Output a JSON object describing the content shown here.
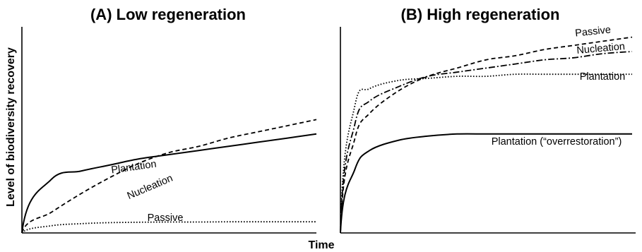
{
  "chart_data": {
    "type": "line",
    "ylabel": "Level of biodiversity recovery",
    "xlabel": "Time",
    "panels": [
      {
        "title": "(A) Low regeneration",
        "x": [
          0,
          0.1,
          0.2,
          0.3,
          0.4,
          0.5,
          0.6,
          0.7,
          0.8,
          0.9,
          1.0
        ],
        "ylim": [
          0,
          1
        ],
        "series": [
          {
            "name": "Plantation",
            "style": "solid",
            "values": [
              0.0,
              0.26,
              0.3,
              0.33,
              0.36,
              0.38,
              0.4,
              0.42,
              0.44,
              0.46,
              0.48
            ]
          },
          {
            "name": "Nucleation",
            "style": "dashed",
            "values": [
              0.0,
              0.1,
              0.19,
              0.27,
              0.34,
              0.39,
              0.42,
              0.46,
              0.49,
              0.52,
              0.55
            ]
          },
          {
            "name": "Passive",
            "style": "dotted",
            "values": [
              0.0,
              0.035,
              0.045,
              0.05,
              0.052,
              0.053,
              0.053,
              0.054,
              0.054,
              0.054,
              0.054
            ]
          }
        ]
      },
      {
        "title": "(B) High regeneration",
        "x": [
          0,
          0.05,
          0.1,
          0.2,
          0.3,
          0.4,
          0.5,
          0.6,
          0.7,
          0.8,
          0.9,
          1.0
        ],
        "ylim": [
          0,
          1
        ],
        "series": [
          {
            "name": "Passive",
            "style": "dashed",
            "values": [
              0.0,
              0.46,
              0.58,
              0.69,
              0.76,
              0.8,
              0.84,
              0.86,
              0.89,
              0.91,
              0.93,
              0.95
            ]
          },
          {
            "name": "Nucleation",
            "style": "dash-dot",
            "values": [
              0.0,
              0.53,
              0.64,
              0.71,
              0.76,
              0.78,
              0.8,
              0.82,
              0.84,
              0.85,
              0.87,
              0.88
            ]
          },
          {
            "name": "Plantation",
            "style": "dotted",
            "values": [
              0.0,
              0.62,
              0.7,
              0.74,
              0.75,
              0.76,
              0.76,
              0.77,
              0.77,
              0.77,
              0.77,
              0.77
            ]
          },
          {
            "name": "Plantation (“overrestoration”)",
            "style": "solid",
            "values": [
              0.0,
              0.31,
              0.4,
              0.45,
              0.47,
              0.48,
              0.48,
              0.48,
              0.48,
              0.48,
              0.48,
              0.48
            ]
          }
        ]
      }
    ]
  }
}
